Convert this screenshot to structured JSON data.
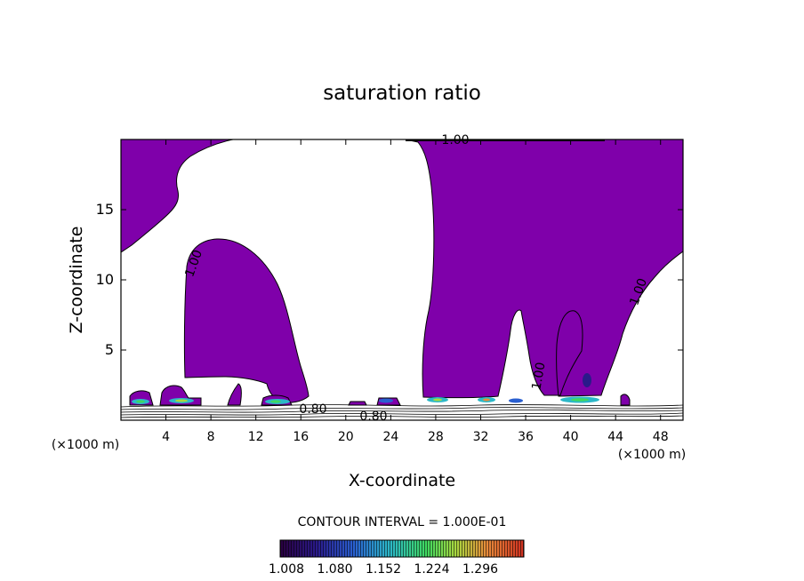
{
  "chart_data": {
    "type": "heatmap",
    "title": "saturation ratio",
    "xlabel": "X-coordinate",
    "ylabel": "Z-coordinate",
    "x_unit": "(×1000 m)",
    "xlim": [
      0,
      50
    ],
    "ylim": [
      0,
      20
    ],
    "x_ticks": [
      4,
      8,
      12,
      16,
      20,
      24,
      28,
      32,
      36,
      40,
      44,
      48
    ],
    "y_ticks": [
      5,
      10,
      15
    ],
    "contour_interval_label": "CONTOUR INTERVAL = 1.000E-01",
    "contour_labels": [
      "1.00",
      "1.00",
      "1.00",
      "1.00",
      "0.80",
      "0.80"
    ],
    "colorbar": {
      "min": 1.0,
      "max": 1.33,
      "tick_labels": [
        "1.008",
        "1.080",
        "1.152",
        "1.224",
        "1.296"
      ]
    },
    "colors": {
      "region_supersaturated": "#7f00aa",
      "contour_line": "#000000"
    }
  }
}
